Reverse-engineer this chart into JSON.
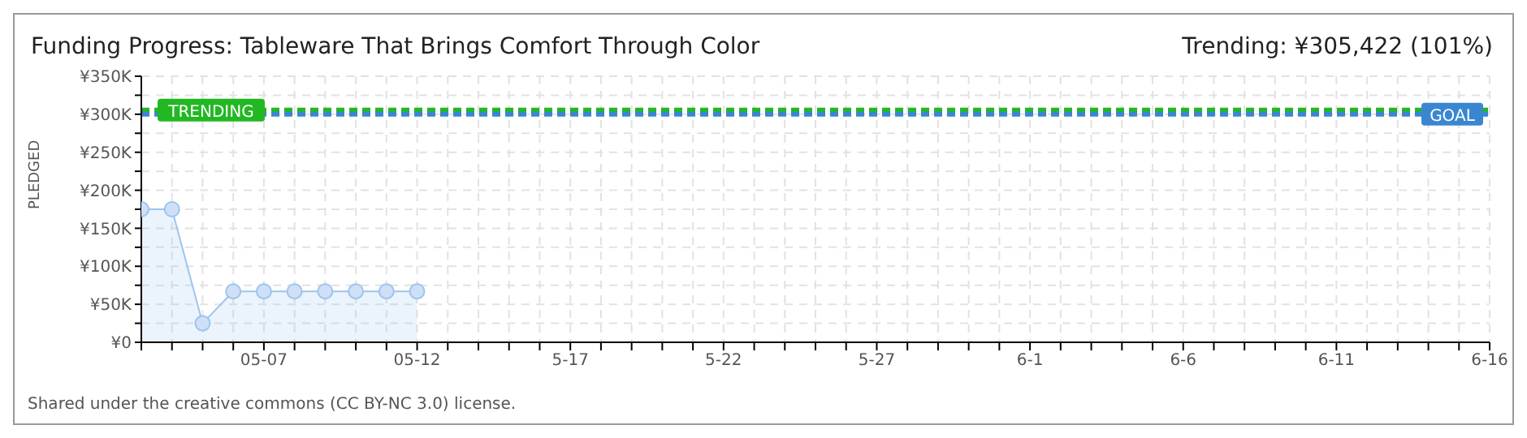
{
  "chart_data": {
    "type": "area",
    "title": "Funding Progress: Tableware That Brings Comfort Through Color",
    "subtitle": "Trending: ¥305,422 (101%)",
    "ylabel": "PLEDGED",
    "x": [
      "--05-03",
      "--05-04",
      "--05-05",
      "--05-06",
      "--05-07",
      "--05-08",
      "--05-09",
      "--05-10",
      "--05-11",
      "--05-12"
    ],
    "series": [
      {
        "color": "#9cc4ee",
        "values": [
          175000,
          175000,
          25000,
          67000,
          67000,
          67000,
          67000,
          67000,
          67000,
          67000
        ]
      }
    ],
    "xlim": [
      "--05-03",
      "--06-16"
    ],
    "xticks": [
      {
        "value": "--05-03",
        "label": null
      },
      {
        "value": "--05-04",
        "label": null
      },
      {
        "value": "--05-05",
        "label": null
      },
      {
        "value": "--05-06",
        "label": null
      },
      {
        "value": "--05-07",
        "label": "05-07"
      },
      {
        "value": "--05-08",
        "label": null
      },
      {
        "value": "--05-09",
        "label": null
      },
      {
        "value": "--05-10",
        "label": null
      },
      {
        "value": "--05-11",
        "label": null
      },
      {
        "value": "--05-12",
        "label": "05-12"
      },
      {
        "value": "--05-13",
        "label": null
      },
      {
        "value": "--05-14",
        "label": null
      },
      {
        "value": "--05-15",
        "label": null
      },
      {
        "value": "--05-16",
        "label": null
      },
      {
        "value": "--05-17",
        "label": "5-17"
      },
      {
        "value": "--05-18",
        "label": null
      },
      {
        "value": "--05-19",
        "label": null
      },
      {
        "value": "--05-20",
        "label": null
      },
      {
        "value": "--05-21",
        "label": null
      },
      {
        "value": "--05-22",
        "label": "5-22"
      },
      {
        "value": "--05-23",
        "label": null
      },
      {
        "value": "--05-24",
        "label": null
      },
      {
        "value": "--05-25",
        "label": null
      },
      {
        "value": "--05-26",
        "label": null
      },
      {
        "value": "--05-27",
        "label": "5-27"
      },
      {
        "value": "--05-28",
        "label": null
      },
      {
        "value": "--05-29",
        "label": null
      },
      {
        "value": "--05-30",
        "label": null
      },
      {
        "value": "--05-31",
        "label": null
      },
      {
        "value": "--06-01",
        "label": "6-1"
      },
      {
        "value": "--06-02",
        "label": null
      },
      {
        "value": "--06-03",
        "label": null
      },
      {
        "value": "--06-04",
        "label": null
      },
      {
        "value": "--06-05",
        "label": null
      },
      {
        "value": "--06-06",
        "label": "6-6"
      },
      {
        "value": "--06-07",
        "label": null
      },
      {
        "value": "--06-08",
        "label": null
      },
      {
        "value": "--06-09",
        "label": null
      },
      {
        "value": "--06-10",
        "label": null
      },
      {
        "value": "--06-11",
        "label": "6-11"
      },
      {
        "value": "--06-12",
        "label": null
      },
      {
        "value": "--06-13",
        "label": null
      },
      {
        "value": "--06-14",
        "label": null
      },
      {
        "value": "--06-15",
        "label": null
      },
      {
        "value": "--06-16",
        "label": "6-16"
      }
    ],
    "ylim": [
      0,
      350000
    ],
    "yticks": [
      {
        "value": 0,
        "label": "¥0"
      },
      {
        "value": 25000,
        "label": null
      },
      {
        "value": 50000,
        "label": "¥50K"
      },
      {
        "value": 75000,
        "label": null
      },
      {
        "value": 100000,
        "label": "¥100K"
      },
      {
        "value": 125000,
        "label": null
      },
      {
        "value": 150000,
        "label": "¥150K"
      },
      {
        "value": 175000,
        "label": null
      },
      {
        "value": 200000,
        "label": "¥200K"
      },
      {
        "value": 225000,
        "label": null
      },
      {
        "value": 250000,
        "label": "¥250K"
      },
      {
        "value": 275000,
        "label": null
      },
      {
        "value": 300000,
        "label": "¥300K"
      },
      {
        "value": 325000,
        "label": null
      },
      {
        "value": 350000,
        "label": "¥350K"
      }
    ],
    "ref_lines": [
      {
        "axis": "y",
        "value": 305422,
        "label": "TRENDING",
        "color": "#22b822",
        "line_style": "dashed"
      },
      {
        "axis": "y",
        "value": 300000,
        "label": "GOAL",
        "color": "#3a86d0",
        "line_style": "dashed"
      }
    ],
    "annotations": [
      "Shared under the creative commons (CC BY-NC 3.0) license."
    ],
    "grid": true,
    "marker": "circle"
  }
}
